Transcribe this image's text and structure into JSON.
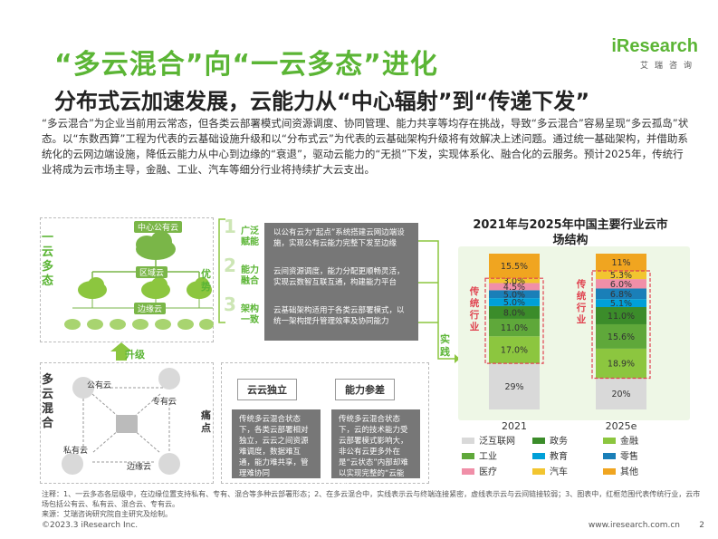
{
  "header": {
    "title": "“多云混合”向“一云多态”进化",
    "subtitle": "分布式云加速发展，云能力从“中心辐射”到“传递下发”",
    "logo_main": "iResearch",
    "logo_cn": "艾瑞咨询"
  },
  "intro": "“多云混合”为企业当前用云常态，但各类云部署模式间资源调度、协同管理、能力共享等均存在挑战，导致“多云混合”容易呈现“多云孤岛”状态。以“东数西算”工程为代表的云基础设施升级和以“分布式云”为代表的云基础架构升级将有效解决上述问题。通过统一基础架构，并借助系统化的云网边端设施，降低云能力从中心到边缘的“衰退”，驱动云能力的“无损”下发，实现体系化、融合化的云服务。预计2025年，传统行业将成为云市场主导，金融、工业、汽车等细分行业将持续扩大云支出。",
  "diagram": {
    "top_label": "一云多态",
    "bottom_label": "多云混合",
    "center_cloud": "中心公有云",
    "region_cloud": "区域云",
    "edge_cloud": "边缘云",
    "upgrade": "升级",
    "practice": "实践",
    "advantages_label": "优势",
    "pain_label": "痛点",
    "bottom_nodes": {
      "public": "公有云",
      "dedicated": "专有云",
      "private": "私有云",
      "edge": "边缘云"
    },
    "advantages": [
      {
        "num": "1",
        "tag": "广泛赋能",
        "text": "以公有云为“起点”系统搭建云网边端设施，实现公有云能力完整下发至边缘"
      },
      {
        "num": "2",
        "tag": "能力融合",
        "text": "云间资源调度，能力分配更顺畅灵活，实现云数智互联互通，构建能力平台"
      },
      {
        "num": "3",
        "tag": "架构一致",
        "text": "云基础架构适用于各类云部署模式，以统一架构提升管理效率及协同能力"
      }
    ],
    "pains": [
      {
        "title": "云云独立",
        "text": "传统多云混合状态下，各类云部署相对独立，云云之间资源难调度，数据难互通，能力难共享，管理难协同"
      },
      {
        "title": "能力参差",
        "text": "传统多云混合状态下，云的技术能力受云部署模式影响大，非公有云更多外在是“云状态”内部却难以实现完整的“云能力”"
      }
    ]
  },
  "chart_data": {
    "type": "bar",
    "stacked": true,
    "title": "2021年与2025年中国主要行业云市场结构",
    "categories": [
      "2021",
      "2025e"
    ],
    "series": [
      {
        "name": "泛互联网",
        "color": "#d9d9d9",
        "values": [
          29,
          20
        ]
      },
      {
        "name": "金融",
        "color": "#8cc63f",
        "values": [
          17.0,
          18.9
        ]
      },
      {
        "name": "工业",
        "color": "#5fa83a",
        "values": [
          11.0,
          15.6
        ]
      },
      {
        "name": "政务",
        "color": "#3b8c2a",
        "values": [
          8.0,
          11.0
        ]
      },
      {
        "name": "教育",
        "color": "#00a0d8",
        "values": [
          5.0,
          5.1
        ]
      },
      {
        "name": "零售",
        "color": "#1a7fb8",
        "values": [
          5.0,
          6.8
        ]
      },
      {
        "name": "医疗",
        "color": "#f08fa8",
        "values": [
          4.5,
          6.0
        ]
      },
      {
        "name": "汽车",
        "color": "#f2c530",
        "values": [
          3.0,
          5.3
        ]
      },
      {
        "name": "其他",
        "color": "#f0a520",
        "values": [
          15.5,
          11
        ]
      }
    ],
    "data_labels": [
      [
        "29%",
        "17.0%",
        "11.0%",
        "8.0%",
        "5.0%",
        "5.0%",
        "4.5%",
        "3.0%",
        "15.5%"
      ],
      [
        "20%",
        "18.9%",
        "15.6%",
        "11.0%",
        "5.1%",
        "6.8%",
        "6.0%",
        "5.3%",
        "11%"
      ]
    ],
    "bracket_label": "传统行业",
    "legend": [
      "泛互联网",
      "政务",
      "金融",
      "工业",
      "教育",
      "零售",
      "医疗",
      "汽车",
      "其他"
    ]
  },
  "notes": "注释：1、一云多态各层级中，在边缘位置支持私有、专有、混合等多种云部署形态；2、在多云混合中，实线表示云与终端连接紧密，虚线表示云与云间链接较弱；3、图表中，红框范围代表传统行业，云市场包括公有云、私有云、混合云、专有云。",
  "source": "来源：艾瑞咨询研究院自主研究及绘制。",
  "footer": {
    "copyright": "©2023.3 iResearch Inc.",
    "url": "www.iresearch.com.cn",
    "page": "2"
  }
}
